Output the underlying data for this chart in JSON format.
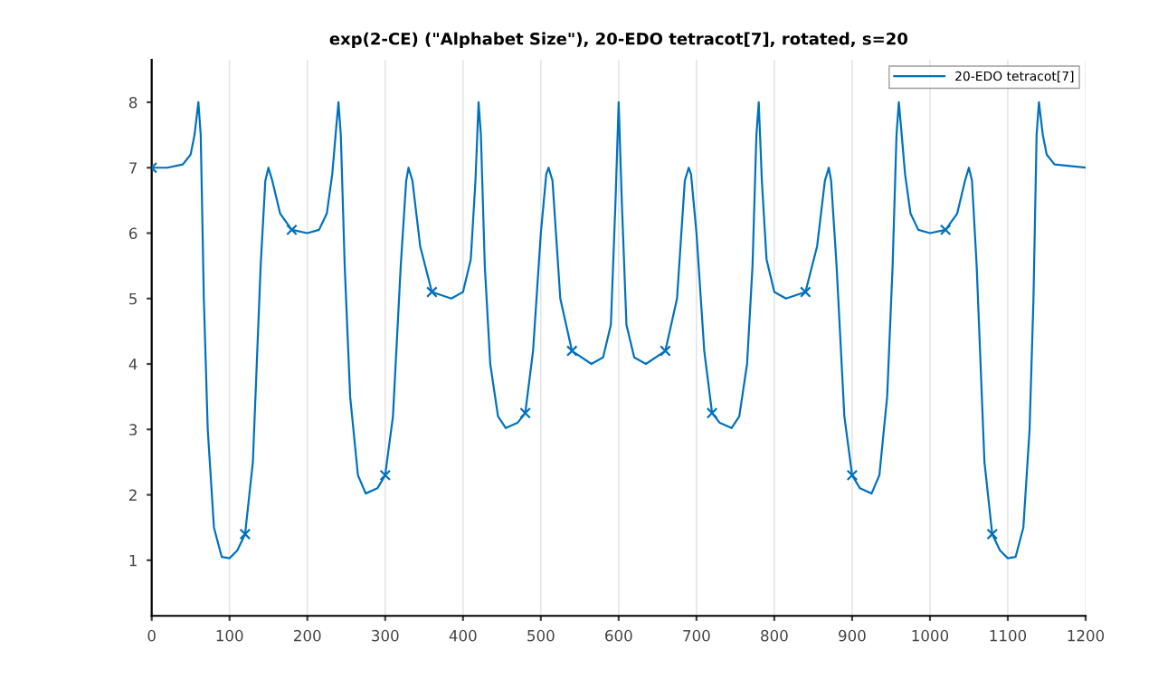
{
  "chart_data": {
    "type": "line",
    "title": "exp(2-CE) (\"Alphabet Size\"), 20-EDO tetracot[7], rotated, s=20",
    "xlim": [
      0,
      1200
    ],
    "xticks": [
      0,
      100,
      200,
      300,
      400,
      500,
      600,
      700,
      800,
      900,
      1000,
      1100,
      1200
    ],
    "ylim": [
      0.15,
      8.65
    ],
    "yticks": [
      1,
      2,
      3,
      4,
      5,
      6,
      7,
      8
    ],
    "grid": "x",
    "legend": "top right",
    "series": [
      {
        "name": "20-EDO tetracot[7]",
        "color": "#0072bd",
        "marker": "none",
        "x": [
          0,
          20,
          40,
          50,
          55,
          60,
          63,
          67,
          72,
          80,
          90,
          100,
          110,
          120,
          130,
          140,
          146,
          150,
          155,
          165,
          180,
          200,
          215,
          225,
          232,
          237,
          240,
          243,
          248,
          255,
          265,
          275,
          290,
          300,
          310,
          320,
          327,
          330,
          335,
          345,
          360,
          385,
          400,
          410,
          416,
          420,
          423,
          428,
          435,
          445,
          455,
          470,
          480,
          490,
          500,
          507,
          510,
          515,
          525,
          540,
          565,
          580,
          590,
          596,
          600,
          604,
          610,
          620,
          635,
          660,
          675,
          685,
          690,
          693,
          700,
          710,
          720,
          730,
          745,
          755,
          765,
          772,
          777,
          780,
          784,
          790,
          800,
          815,
          840,
          855,
          865,
          870,
          873,
          880,
          890,
          900,
          910,
          925,
          935,
          945,
          952,
          957,
          960,
          963,
          968,
          975,
          985,
          1000,
          1020,
          1035,
          1045,
          1050,
          1054,
          1060,
          1070,
          1080,
          1090,
          1100,
          1110,
          1120,
          1128,
          1133,
          1137,
          1140,
          1145,
          1150,
          1160,
          1200
        ],
        "values": [
          7,
          7,
          7.05,
          7.2,
          7.5,
          8,
          7.5,
          5,
          3,
          1.5,
          1.05,
          1.03,
          1.15,
          1.4,
          2.5,
          5.5,
          6.8,
          7,
          6.8,
          6.3,
          6.05,
          6,
          6.05,
          6.3,
          6.9,
          7.6,
          8,
          7.5,
          5.5,
          3.5,
          2.3,
          2.02,
          2.1,
          2.3,
          3.2,
          5.5,
          6.8,
          7,
          6.8,
          5.8,
          5.1,
          5,
          5.1,
          5.6,
          6.8,
          8,
          7.5,
          5.5,
          4,
          3.2,
          3.02,
          3.1,
          3.25,
          4.2,
          6,
          6.9,
          7,
          6.8,
          5,
          4.2,
          4,
          4.1,
          4.6,
          6.5,
          8,
          6.5,
          4.6,
          4.1,
          4,
          4.2,
          5,
          6.8,
          7,
          6.9,
          6,
          4.2,
          3.25,
          3.1,
          3.02,
          3.2,
          4,
          5.5,
          7.5,
          8,
          6.8,
          5.6,
          5.1,
          5,
          5.1,
          5.8,
          6.8,
          7,
          6.8,
          5.5,
          3.2,
          2.3,
          2.1,
          2.02,
          2.3,
          3.5,
          5.5,
          7.5,
          8,
          7.6,
          6.9,
          6.3,
          6.05,
          6,
          6.05,
          6.3,
          6.8,
          7,
          6.8,
          5.5,
          2.5,
          1.4,
          1.15,
          1.03,
          1.05,
          1.5,
          3,
          5,
          7.5,
          8,
          7.5,
          7.2,
          7.05,
          7
        ]
      },
      {
        "type": "scatter",
        "color": "#0072bd",
        "marker": "cross",
        "x": [
          0,
          120,
          180,
          300,
          360,
          480,
          540,
          660,
          720,
          840,
          900,
          1020,
          1080
        ],
        "values": [
          7,
          1.4,
          6.05,
          2.3,
          5.1,
          3.25,
          4.2,
          4.2,
          3.25,
          5.1,
          2.3,
          6.05,
          1.4
        ]
      }
    ]
  }
}
